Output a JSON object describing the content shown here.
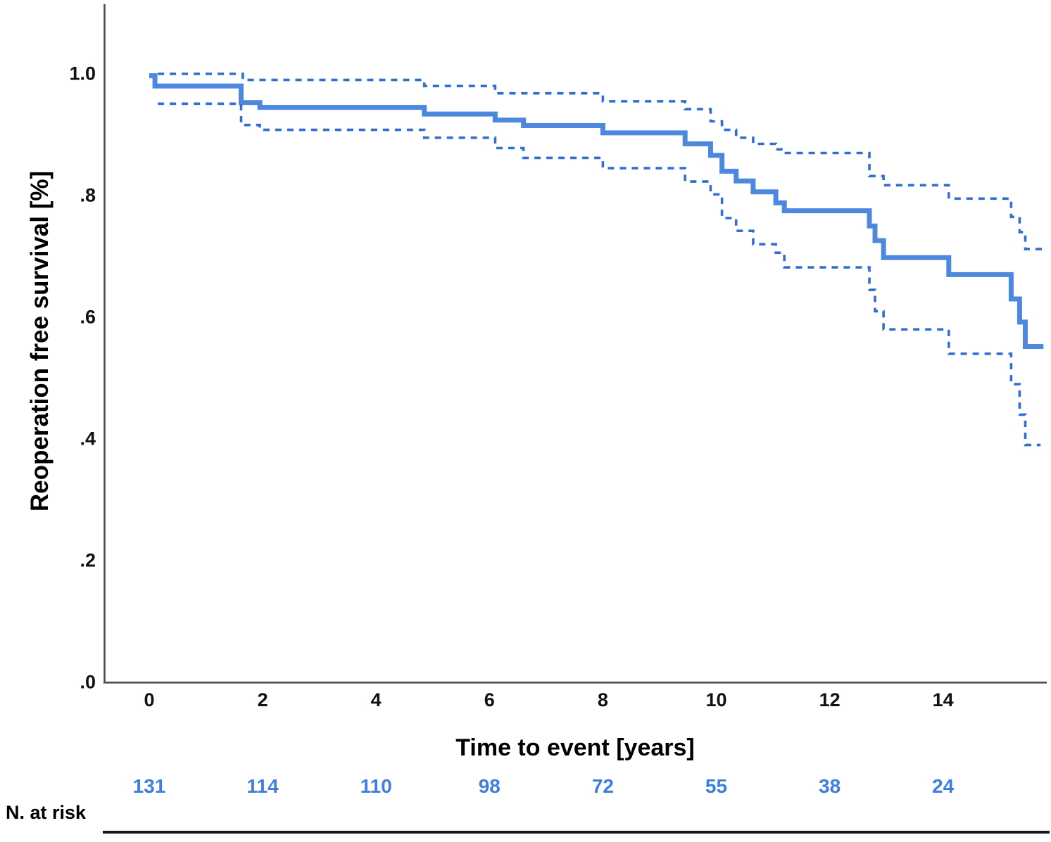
{
  "colors": {
    "solid_line": "#4c88dd",
    "dashed_line": "#2f6fd4",
    "risk_numbers": "#3d7ee0",
    "axis": "#4d4d4d",
    "text": "#000000"
  },
  "chart_data": {
    "type": "line",
    "subtype": "kaplan-meier-step",
    "title": "",
    "xlabel": "Time to event [years]",
    "ylabel": "Reoperation free survival [%]",
    "xlim": [
      -0.8,
      15.9
    ],
    "ylim": [
      0.0,
      1.1
    ],
    "grid": false,
    "legend": "none",
    "x_ticks": [
      {
        "label": "0",
        "t": 0
      },
      {
        "label": "2",
        "t": 2
      },
      {
        "label": "4",
        "t": 4
      },
      {
        "label": "6",
        "t": 6
      },
      {
        "label": "8",
        "t": 8
      },
      {
        "label": "10",
        "t": 10
      },
      {
        "label": "12",
        "t": 12
      },
      {
        "label": "14",
        "t": 14
      }
    ],
    "y_ticks": [
      {
        "label": "1.0",
        "v": 1.0
      },
      {
        "label": ".8",
        "v": 0.8
      },
      {
        "label": ".6",
        "v": 0.6
      },
      {
        "label": ".4",
        "v": 0.4
      },
      {
        "label": ".2",
        "v": 0.2
      },
      {
        "label": ".0",
        "v": 0.0
      }
    ],
    "t_end": 15.77,
    "series": [
      {
        "name": "survival",
        "style": "solid",
        "points": [
          [
            0,
            0.997
          ],
          [
            0.1,
            0.98
          ],
          [
            1.62,
            0.953
          ],
          [
            1.95,
            0.945
          ],
          [
            4.85,
            0.934
          ],
          [
            6.1,
            0.924
          ],
          [
            6.6,
            0.915
          ],
          [
            8.0,
            0.903
          ],
          [
            9.45,
            0.885
          ],
          [
            9.9,
            0.866
          ],
          [
            10.1,
            0.84
          ],
          [
            10.35,
            0.824
          ],
          [
            10.65,
            0.806
          ],
          [
            11.05,
            0.788
          ],
          [
            11.2,
            0.775
          ],
          [
            12.7,
            0.75
          ],
          [
            12.8,
            0.726
          ],
          [
            12.95,
            0.698
          ],
          [
            14.1,
            0.67
          ],
          [
            15.2,
            0.63
          ],
          [
            15.35,
            0.592
          ],
          [
            15.45,
            0.552
          ]
        ],
        "t_end": 15.77
      },
      {
        "name": "upper-ci",
        "style": "dashed",
        "points": [
          [
            0.15,
            1.0
          ],
          [
            1.65,
            0.99
          ],
          [
            4.85,
            0.98
          ],
          [
            6.1,
            0.968
          ],
          [
            8.0,
            0.955
          ],
          [
            9.45,
            0.942
          ],
          [
            9.9,
            0.922
          ],
          [
            10.1,
            0.908
          ],
          [
            10.35,
            0.895
          ],
          [
            10.65,
            0.885
          ],
          [
            11.05,
            0.876
          ],
          [
            11.2,
            0.87
          ],
          [
            12.7,
            0.832
          ],
          [
            12.95,
            0.817
          ],
          [
            14.1,
            0.795
          ],
          [
            15.2,
            0.765
          ],
          [
            15.35,
            0.74
          ],
          [
            15.45,
            0.712
          ]
        ],
        "t_end": 15.77
      },
      {
        "name": "lower-ci",
        "style": "dashed",
        "points": [
          [
            0.15,
            0.951
          ],
          [
            1.62,
            0.916
          ],
          [
            1.95,
            0.908
          ],
          [
            4.85,
            0.895
          ],
          [
            6.1,
            0.878
          ],
          [
            6.6,
            0.862
          ],
          [
            8.0,
            0.845
          ],
          [
            9.45,
            0.823
          ],
          [
            9.9,
            0.802
          ],
          [
            10.1,
            0.763
          ],
          [
            10.35,
            0.742
          ],
          [
            10.65,
            0.72
          ],
          [
            11.05,
            0.706
          ],
          [
            11.2,
            0.682
          ],
          [
            12.7,
            0.645
          ],
          [
            12.8,
            0.61
          ],
          [
            12.95,
            0.58
          ],
          [
            14.1,
            0.54
          ],
          [
            15.2,
            0.49
          ],
          [
            15.35,
            0.44
          ],
          [
            15.45,
            0.39
          ]
        ],
        "t_end": 15.72
      }
    ],
    "risk_table": {
      "label": "N. at risk",
      "values": [
        "131",
        "114",
        "110",
        "98",
        "72",
        "55",
        "38",
        "24"
      ]
    }
  },
  "labels": {
    "y_axis_title": "Reoperation free survival [%]",
    "x_axis_title": "Time to event [years]",
    "risk_label": "N. at risk"
  }
}
